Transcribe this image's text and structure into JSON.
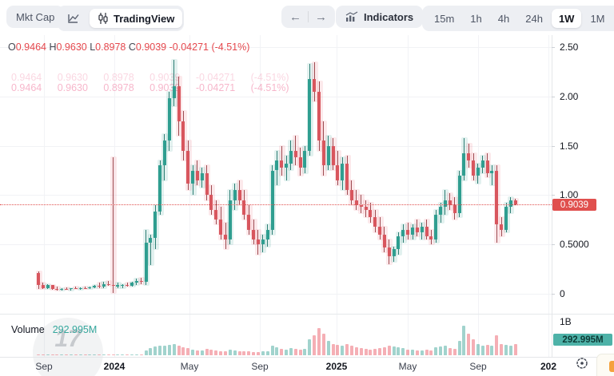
{
  "toolbar": {
    "mkt_cap_label": "Mkt Cap",
    "tradingview_label": "TradingView",
    "back_arrow": "←",
    "forward_arrow": "→",
    "indicators_label": "Indicators",
    "timeframes": [
      "15m",
      "1h",
      "4h",
      "24h",
      "1W",
      "1M"
    ],
    "selected_timeframe": "1W"
  },
  "legend": {
    "o_label": "O",
    "o_value": "0.9464",
    "h_label": "H",
    "h_value": "0.9630",
    "l_label": "L",
    "l_value": "0.8978",
    "c_label": "C",
    "c_value": "0.9039",
    "change_value": "-0.04271 (-4.51%)",
    "ghost_row": "0.9464 0.9630 0.8978 0.9039 -0.04271 (-4.51%)"
  },
  "price_axis": {
    "ticks": [
      {
        "label": "2.50",
        "price": 2.5
      },
      {
        "label": "2.00",
        "price": 2.0
      },
      {
        "label": "1.50",
        "price": 1.5
      },
      {
        "label": "1.00",
        "price": 1.0
      },
      {
        "label": "0.5000",
        "price": 0.5
      },
      {
        "label": "0",
        "price": 0.0
      }
    ],
    "last_price_label": "0.9039",
    "last_price": 0.9039
  },
  "time_axis": {
    "ticks": [
      {
        "label": "Sep",
        "bold": false
      },
      {
        "label": "2024",
        "bold": true
      },
      {
        "label": "May",
        "bold": false
      },
      {
        "label": "Sep",
        "bold": false
      },
      {
        "label": "2025",
        "bold": true
      },
      {
        "label": "May",
        "bold": false
      },
      {
        "label": "Sep",
        "bold": false
      },
      {
        "label": "202",
        "bold": true
      }
    ]
  },
  "volume_pane": {
    "label": "Volume",
    "value": "292.995M",
    "scale_label": "1B",
    "badge": "292.995M",
    "watermark_text": "17"
  },
  "colors": {
    "up_body": "#2f9e90",
    "down_body": "#d8565e",
    "up_wick": "#2d7e74",
    "down_wick": "#9e4a50",
    "up_halo": "rgba(47,158,144,0.14)",
    "down_halo": "rgba(232,77,91,0.12)",
    "up_volume": "rgba(47,158,144,0.45)",
    "down_volume": "rgba(232,77,91,0.45)",
    "accent_red": "#e5484d",
    "accent_teal": "#35a79d",
    "badge_red": "#e0504e",
    "badge_teal": "#4eb2a8"
  },
  "chart_data": {
    "type": "candlestick",
    "interval": "1W",
    "fields": [
      "open",
      "high",
      "low",
      "close",
      "volume_m"
    ],
    "ylim": [
      0,
      2.57
    ],
    "volume_axis_max": "1B",
    "grid": true,
    "candles": [
      [
        0.21,
        0.23,
        0.05,
        0.09,
        8
      ],
      [
        0.09,
        0.11,
        0.05,
        0.06,
        5
      ],
      [
        0.06,
        0.1,
        0.045,
        0.085,
        6
      ],
      [
        0.085,
        0.09,
        0.04,
        0.05,
        4
      ],
      [
        0.05,
        0.07,
        0.035,
        0.045,
        4
      ],
      [
        0.045,
        0.06,
        0.03,
        0.05,
        3
      ],
      [
        0.05,
        0.065,
        0.04,
        0.045,
        3
      ],
      [
        0.045,
        0.06,
        0.035,
        0.055,
        4
      ],
      [
        0.055,
        0.07,
        0.045,
        0.05,
        3
      ],
      [
        0.05,
        0.065,
        0.04,
        0.06,
        4
      ],
      [
        0.06,
        0.075,
        0.05,
        0.055,
        5
      ],
      [
        0.055,
        0.07,
        0.045,
        0.065,
        6
      ],
      [
        0.065,
        0.09,
        0.055,
        0.08,
        8
      ],
      [
        0.08,
        0.11,
        0.06,
        0.07,
        10
      ],
      [
        0.07,
        0.12,
        0.06,
        0.1,
        12
      ],
      [
        0.1,
        0.13,
        0.08,
        0.09,
        10
      ],
      [
        0.09,
        1.38,
        0.01,
        0.08,
        14
      ],
      [
        0.08,
        0.11,
        0.06,
        0.085,
        8
      ],
      [
        0.085,
        0.1,
        0.06,
        0.09,
        6
      ],
      [
        0.09,
        0.11,
        0.07,
        0.08,
        7
      ],
      [
        0.08,
        0.12,
        0.07,
        0.11,
        9
      ],
      [
        0.11,
        0.15,
        0.09,
        0.13,
        12
      ],
      [
        0.13,
        0.16,
        0.1,
        0.12,
        10
      ],
      [
        0.12,
        0.65,
        0.09,
        0.52,
        120
      ],
      [
        0.52,
        0.6,
        0.29,
        0.57,
        180
      ],
      [
        0.57,
        0.9,
        0.45,
        0.83,
        220
      ],
      [
        0.83,
        1.35,
        0.8,
        1.3,
        260
      ],
      [
        1.3,
        1.62,
        1.15,
        1.55,
        240
      ],
      [
        1.55,
        2.05,
        1.45,
        1.98,
        280
      ],
      [
        1.98,
        2.37,
        1.9,
        2.1,
        300
      ],
      [
        2.1,
        2.2,
        1.6,
        1.75,
        260
      ],
      [
        1.75,
        1.85,
        1.35,
        1.45,
        200
      ],
      [
        1.45,
        1.55,
        1.05,
        1.12,
        180
      ],
      [
        1.12,
        1.3,
        1.0,
        1.25,
        150
      ],
      [
        1.25,
        1.35,
        1.1,
        1.15,
        130
      ],
      [
        1.15,
        1.28,
        1.08,
        1.22,
        120
      ],
      [
        1.22,
        1.3,
        0.95,
        1.0,
        160
      ],
      [
        1.0,
        1.1,
        0.8,
        0.85,
        140
      ],
      [
        0.85,
        0.95,
        0.7,
        0.75,
        120
      ],
      [
        0.75,
        0.88,
        0.55,
        0.6,
        110
      ],
      [
        0.6,
        0.72,
        0.45,
        0.55,
        100
      ],
      [
        0.55,
        1.05,
        0.5,
        0.95,
        150
      ],
      [
        0.95,
        1.12,
        0.85,
        1.05,
        130
      ],
      [
        1.05,
        1.15,
        0.9,
        0.95,
        110
      ],
      [
        0.95,
        1.05,
        0.75,
        0.8,
        100
      ],
      [
        0.8,
        0.9,
        0.6,
        0.65,
        95
      ],
      [
        0.65,
        0.75,
        0.5,
        0.55,
        90
      ],
      [
        0.55,
        0.65,
        0.4,
        0.5,
        85
      ],
      [
        0.5,
        0.6,
        0.42,
        0.55,
        95
      ],
      [
        0.55,
        0.7,
        0.48,
        0.65,
        105
      ],
      [
        0.65,
        1.3,
        0.6,
        1.25,
        240
      ],
      [
        1.25,
        1.45,
        1.1,
        1.35,
        200
      ],
      [
        1.35,
        1.5,
        1.2,
        1.28,
        170
      ],
      [
        1.28,
        1.4,
        1.15,
        1.32,
        150
      ],
      [
        1.32,
        1.55,
        1.25,
        1.45,
        180
      ],
      [
        1.45,
        1.6,
        1.3,
        1.38,
        160
      ],
      [
        1.38,
        1.48,
        1.2,
        1.28,
        140
      ],
      [
        1.28,
        1.5,
        1.22,
        1.45,
        170
      ],
      [
        1.45,
        2.33,
        1.4,
        2.18,
        420
      ],
      [
        2.18,
        2.35,
        1.95,
        2.05,
        520
      ],
      [
        2.05,
        2.15,
        1.45,
        1.55,
        700
      ],
      [
        1.55,
        1.75,
        1.2,
        1.3,
        560
      ],
      [
        1.3,
        1.6,
        1.25,
        1.5,
        380
      ],
      [
        1.5,
        1.58,
        1.25,
        1.3,
        300
      ],
      [
        1.3,
        1.45,
        1.1,
        1.15,
        280
      ],
      [
        1.15,
        1.38,
        1.05,
        1.32,
        260
      ],
      [
        1.32,
        1.4,
        1.0,
        1.05,
        300
      ],
      [
        1.05,
        1.15,
        0.9,
        0.95,
        240
      ],
      [
        0.95,
        1.05,
        0.85,
        0.9,
        200
      ],
      [
        0.9,
        1.0,
        0.82,
        0.88,
        180
      ],
      [
        0.88,
        0.95,
        0.78,
        0.85,
        160
      ],
      [
        0.85,
        0.92,
        0.72,
        0.78,
        150
      ],
      [
        0.78,
        0.85,
        0.62,
        0.68,
        170
      ],
      [
        0.68,
        0.78,
        0.55,
        0.6,
        190
      ],
      [
        0.6,
        0.68,
        0.42,
        0.47,
        210
      ],
      [
        0.47,
        0.55,
        0.3,
        0.38,
        260
      ],
      [
        0.38,
        0.48,
        0.32,
        0.45,
        230
      ],
      [
        0.45,
        0.62,
        0.4,
        0.58,
        200
      ],
      [
        0.58,
        0.7,
        0.52,
        0.65,
        180
      ],
      [
        0.65,
        0.72,
        0.55,
        0.6,
        150
      ],
      [
        0.6,
        0.7,
        0.55,
        0.67,
        140
      ],
      [
        0.67,
        0.75,
        0.58,
        0.62,
        130
      ],
      [
        0.62,
        0.72,
        0.55,
        0.68,
        120
      ],
      [
        0.68,
        0.75,
        0.55,
        0.58,
        140
      ],
      [
        0.58,
        0.65,
        0.5,
        0.55,
        130
      ],
      [
        0.55,
        0.85,
        0.52,
        0.8,
        200
      ],
      [
        0.8,
        0.92,
        0.72,
        0.88,
        220
      ],
      [
        0.88,
        1.05,
        0.8,
        0.95,
        260
      ],
      [
        0.95,
        1.02,
        0.85,
        0.9,
        180
      ],
      [
        0.9,
        0.98,
        0.75,
        0.82,
        160
      ],
      [
        0.82,
        1.25,
        0.78,
        1.2,
        380
      ],
      [
        1.2,
        1.58,
        1.15,
        1.42,
        770
      ],
      [
        1.42,
        1.52,
        1.28,
        1.35,
        560
      ],
      [
        1.35,
        1.42,
        1.15,
        1.2,
        420
      ],
      [
        1.2,
        1.32,
        1.12,
        1.28,
        300
      ],
      [
        1.28,
        1.4,
        1.22,
        1.35,
        260
      ],
      [
        1.35,
        1.42,
        1.18,
        1.22,
        280
      ],
      [
        1.22,
        1.3,
        1.1,
        1.25,
        240
      ],
      [
        1.25,
        1.3,
        0.52,
        0.7,
        520
      ],
      [
        0.7,
        0.78,
        0.58,
        0.65,
        300
      ],
      [
        0.65,
        0.92,
        0.62,
        0.88,
        280
      ],
      [
        0.88,
        0.98,
        0.82,
        0.95,
        240
      ],
      [
        0.9464,
        0.963,
        0.8978,
        0.9039,
        293
      ]
    ]
  }
}
